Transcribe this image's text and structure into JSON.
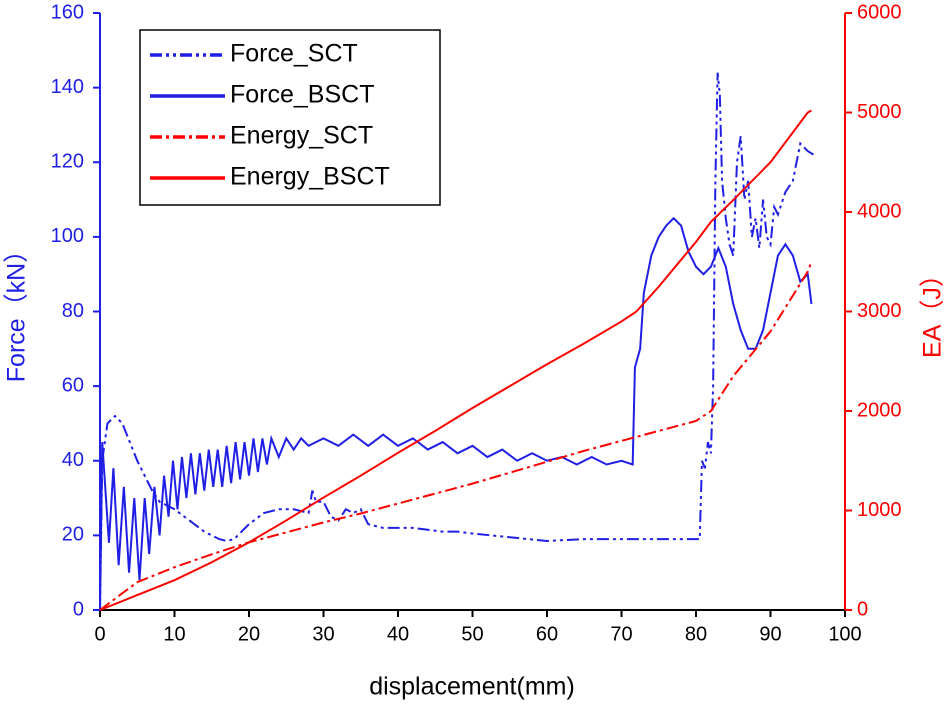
{
  "chart_data": {
    "type": "line",
    "xlabel": "displacement(mm)",
    "ylabel": "Force（kN）",
    "y2label": "EA（J）",
    "xlim": [
      0,
      100
    ],
    "xticks": [
      0,
      10,
      20,
      30,
      40,
      50,
      60,
      70,
      80,
      90,
      100
    ],
    "ylim": [
      0,
      160
    ],
    "yticks": [
      0,
      20,
      40,
      60,
      80,
      100,
      120,
      140,
      160
    ],
    "y2lim": [
      0,
      6000
    ],
    "y2ticks": [
      0,
      1000,
      2000,
      3000,
      4000,
      5000,
      6000
    ],
    "ycolor": "#1f1fe6",
    "y2color": "#ff0000",
    "legend": "upper left",
    "series": [
      {
        "name": "Force_SCT",
        "color": "#1f1fe6",
        "style": "dash-dot-dot",
        "x": [
          0,
          0.3,
          1,
          2,
          3,
          4,
          5,
          6,
          7,
          8,
          10,
          12,
          14,
          16,
          17,
          18,
          20,
          22,
          24,
          26,
          28,
          28.5,
          29,
          30,
          31,
          32,
          33,
          34,
          35,
          36,
          38,
          40,
          42,
          44,
          46,
          48,
          50,
          55,
          60,
          65,
          70,
          75,
          80,
          80.5,
          80.8,
          81.2,
          81.6,
          82,
          82.3,
          82.6,
          82.9,
          83.2,
          83.5,
          84,
          84.5,
          85,
          85.5,
          86,
          86.5,
          87,
          87.5,
          88,
          88.5,
          89,
          89.5,
          90,
          90.5,
          91,
          92,
          93,
          94,
          94.5,
          95,
          95.8
        ],
        "values": [
          0,
          40,
          50,
          52,
          50,
          45,
          40,
          36,
          32,
          29,
          27,
          24,
          21,
          19,
          18.5,
          19,
          23,
          26,
          27,
          27,
          26,
          32,
          29,
          29,
          25,
          24,
          27,
          26,
          27,
          23,
          22,
          22,
          22,
          21.5,
          21,
          21,
          20.5,
          19.5,
          18.5,
          19,
          19,
          19,
          19,
          19,
          40,
          38,
          45,
          42,
          60,
          115,
          144,
          138,
          115,
          105,
          98,
          95,
          120,
          127,
          110,
          115,
          100,
          105,
          97,
          110,
          100,
          98,
          108,
          106,
          112,
          115,
          125,
          124,
          123,
          122
        ]
      },
      {
        "name": "Force_BSCT",
        "color": "#1f1fe6",
        "style": "solid",
        "x": [
          0,
          0.3,
          0.8,
          1.2,
          1.8,
          2.5,
          3.2,
          3.9,
          4.6,
          5.3,
          6,
          6.6,
          7.3,
          8,
          8.6,
          9.2,
          9.8,
          10.4,
          11,
          11.6,
          12.2,
          12.8,
          13.4,
          14,
          14.6,
          15.2,
          15.8,
          16.4,
          17,
          17.6,
          18.2,
          18.8,
          19.4,
          20,
          20.6,
          21.2,
          21.8,
          22.4,
          23,
          24,
          25,
          26,
          27,
          28,
          30,
          32,
          34,
          36,
          38,
          40,
          42,
          44,
          46,
          48,
          50,
          52,
          54,
          56,
          58,
          60,
          62,
          64,
          66,
          68,
          70,
          71.5,
          71.8,
          72.5,
          73,
          74,
          75,
          76,
          77,
          78,
          79,
          80,
          81,
          82,
          83,
          84,
          85,
          86,
          87,
          88,
          89,
          90,
          91,
          92,
          93,
          94,
          95,
          95.5
        ],
        "values": [
          0,
          45,
          30,
          18,
          38,
          12,
          33,
          10,
          30,
          8,
          30,
          15,
          33,
          20,
          36,
          25,
          40,
          27,
          41,
          30,
          42,
          31,
          42,
          32,
          43,
          33,
          43,
          33,
          44,
          34,
          45,
          35,
          45,
          36,
          46,
          37,
          46,
          39,
          46,
          41,
          46,
          43,
          46,
          44,
          46,
          44,
          47,
          44,
          47,
          44,
          46,
          43,
          45,
          42,
          44,
          41,
          43,
          40,
          42,
          40,
          41,
          39,
          41,
          39,
          40,
          39,
          65,
          70,
          85,
          95,
          100,
          103,
          105,
          103,
          96,
          92,
          90,
          92,
          97,
          92,
          82,
          75,
          70,
          70,
          75,
          85,
          95,
          98,
          95,
          88,
          90,
          82
        ]
      },
      {
        "name": "Energy_SCT",
        "color": "#ff0000",
        "style": "dash-dot",
        "axis": "y2",
        "x": [
          0,
          5,
          10,
          15,
          20,
          25,
          30,
          35,
          40,
          45,
          50,
          55,
          60,
          65,
          70,
          75,
          80,
          81,
          82,
          85,
          90,
          95,
          95.5
        ],
        "values": [
          0,
          280,
          430,
          560,
          680,
          780,
          880,
          970,
          1070,
          1170,
          1270,
          1380,
          1490,
          1600,
          1700,
          1800,
          1900,
          1950,
          2000,
          2350,
          2800,
          3400,
          3500
        ]
      },
      {
        "name": "Energy_BSCT",
        "color": "#ff0000",
        "style": "solid",
        "axis": "y2",
        "x": [
          0,
          5,
          10,
          15,
          20,
          25,
          30,
          35,
          40,
          45,
          50,
          55,
          60,
          65,
          70,
          72,
          75,
          80,
          82,
          85,
          90,
          95,
          95.5
        ],
        "values": [
          0,
          150,
          300,
          480,
          680,
          900,
          1130,
          1350,
          1580,
          1800,
          2030,
          2250,
          2470,
          2680,
          2900,
          3000,
          3250,
          3700,
          3900,
          4120,
          4500,
          5000,
          5020
        ]
      }
    ]
  }
}
